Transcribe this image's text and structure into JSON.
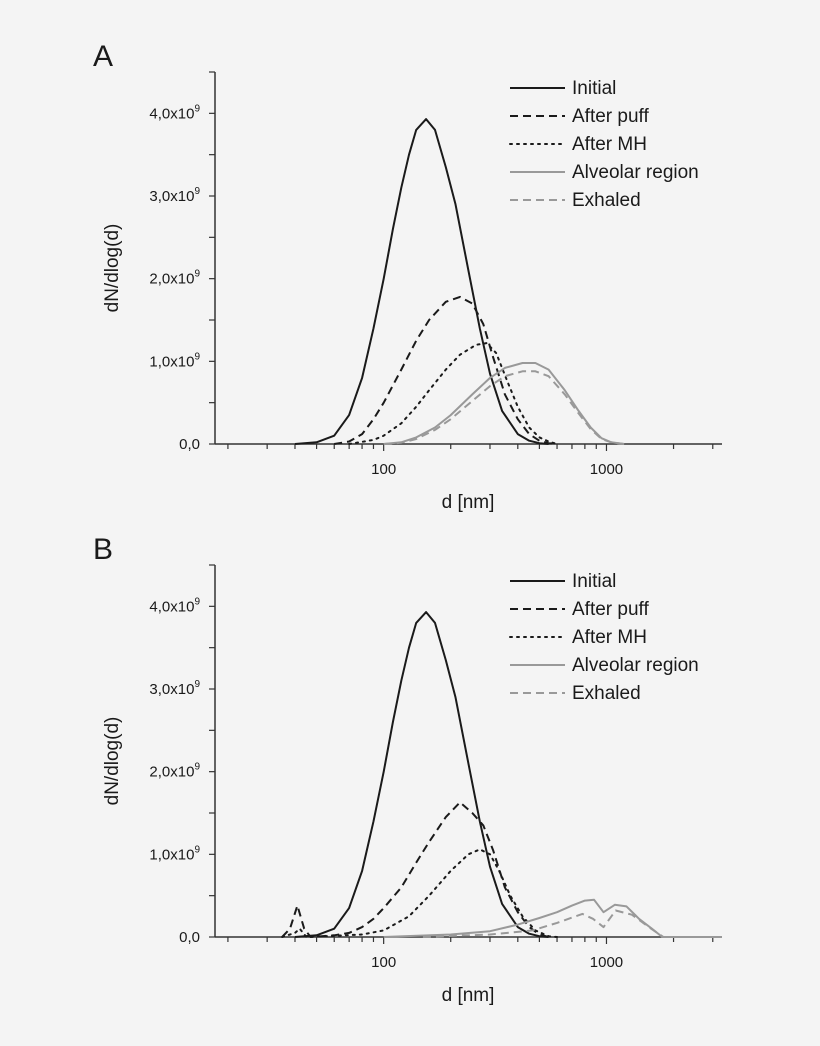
{
  "chart_data": [
    {
      "type": "line",
      "panel_label": "A",
      "xlabel": "d [nm]",
      "ylabel": "dN/dlog(d)",
      "x_scale": "log",
      "xlim": [
        17.5,
        3300
      ],
      "ylim": [
        0,
        4500000000.0
      ],
      "x_ticks": [
        {
          "value": 100,
          "label": "100"
        },
        {
          "value": 1000,
          "label": "1000"
        }
      ],
      "y_ticks": [
        {
          "value": 0,
          "text": "0,0",
          "exp": ""
        },
        {
          "value": 1000000000.0,
          "text": "1,0x10",
          "exp": "9"
        },
        {
          "value": 2000000000.0,
          "text": "2,0x10",
          "exp": "9"
        },
        {
          "value": 3000000000.0,
          "text": "3,0x10",
          "exp": "9"
        },
        {
          "value": 4000000000.0,
          "text": "4,0x10",
          "exp": "9"
        }
      ],
      "grid": false,
      "legend_position": "top-right",
      "y_unit_multiplier": 1000000000.0,
      "series": [
        {
          "name": "Initial",
          "color": "#1a1a1a",
          "style": "solid",
          "x": [
            40,
            50,
            60,
            70,
            80,
            90,
            100,
            110,
            120,
            130,
            140,
            155,
            170,
            190,
            210,
            240,
            270,
            300,
            340,
            400,
            450,
            500,
            550
          ],
          "y": [
            0,
            0.02,
            0.1,
            0.35,
            0.8,
            1.4,
            2.0,
            2.6,
            3.1,
            3.5,
            3.8,
            3.93,
            3.8,
            3.35,
            2.9,
            2.1,
            1.4,
            0.85,
            0.4,
            0.12,
            0.04,
            0.01,
            0
          ]
        },
        {
          "name": "After puff",
          "color": "#1a1a1a",
          "style": "dashed",
          "x": [
            60,
            70,
            80,
            90,
            100,
            120,
            140,
            160,
            190,
            220,
            250,
            280,
            310,
            350,
            400,
            450,
            500,
            550,
            600
          ],
          "y": [
            0,
            0.03,
            0.12,
            0.3,
            0.5,
            0.9,
            1.25,
            1.5,
            1.72,
            1.78,
            1.7,
            1.45,
            1.05,
            0.6,
            0.3,
            0.12,
            0.04,
            0.01,
            0
          ]
        },
        {
          "name": "After MH",
          "color": "#1a1a1a",
          "style": "dotted",
          "x": [
            70,
            90,
            100,
            120,
            140,
            160,
            190,
            220,
            260,
            290,
            320,
            360,
            400,
            450,
            500,
            550,
            600
          ],
          "y": [
            0,
            0.05,
            0.1,
            0.25,
            0.45,
            0.65,
            0.9,
            1.08,
            1.2,
            1.22,
            1.1,
            0.75,
            0.45,
            0.2,
            0.08,
            0.03,
            0
          ]
        },
        {
          "name": "Alveolar region",
          "color": "#999999",
          "style": "solid",
          "x": [
            100,
            120,
            140,
            170,
            200,
            250,
            300,
            350,
            420,
            480,
            550,
            650,
            750,
            850,
            950,
            1050,
            1200
          ],
          "y": [
            0,
            0.02,
            0.08,
            0.2,
            0.35,
            0.6,
            0.8,
            0.92,
            0.98,
            0.98,
            0.9,
            0.65,
            0.4,
            0.2,
            0.07,
            0.02,
            0
          ]
        },
        {
          "name": "Exhaled",
          "color": "#999999",
          "style": "dashed",
          "x": [
            100,
            120,
            140,
            170,
            200,
            250,
            300,
            350,
            420,
            480,
            550,
            650,
            750,
            850,
            950,
            1050,
            1200
          ],
          "y": [
            0,
            0.015,
            0.06,
            0.17,
            0.3,
            0.52,
            0.7,
            0.82,
            0.88,
            0.88,
            0.82,
            0.6,
            0.37,
            0.18,
            0.06,
            0.02,
            0
          ]
        }
      ]
    },
    {
      "type": "line",
      "panel_label": "B",
      "xlabel": "d [nm]",
      "ylabel": "dN/dlog(d)",
      "x_scale": "log",
      "xlim": [
        17.5,
        3300
      ],
      "ylim": [
        0,
        4500000000.0
      ],
      "x_ticks": [
        {
          "value": 100,
          "label": "100"
        },
        {
          "value": 1000,
          "label": "1000"
        }
      ],
      "y_ticks": [
        {
          "value": 0,
          "text": "0,0",
          "exp": ""
        },
        {
          "value": 1000000000.0,
          "text": "1,0x10",
          "exp": "9"
        },
        {
          "value": 2000000000.0,
          "text": "2,0x10",
          "exp": "9"
        },
        {
          "value": 3000000000.0,
          "text": "3,0x10",
          "exp": "9"
        },
        {
          "value": 4000000000.0,
          "text": "4,0x10",
          "exp": "9"
        }
      ],
      "grid": false,
      "legend_position": "top-right",
      "y_unit_multiplier": 1000000000.0,
      "series": [
        {
          "name": "Initial",
          "color": "#1a1a1a",
          "style": "solid",
          "x": [
            40,
            50,
            60,
            70,
            80,
            90,
            100,
            110,
            120,
            130,
            140,
            155,
            170,
            190,
            210,
            240,
            270,
            300,
            340,
            400,
            450,
            500,
            550
          ],
          "y": [
            0,
            0.02,
            0.1,
            0.35,
            0.8,
            1.4,
            2.0,
            2.6,
            3.1,
            3.5,
            3.8,
            3.93,
            3.8,
            3.35,
            2.9,
            2.1,
            1.4,
            0.85,
            0.4,
            0.12,
            0.04,
            0.01,
            0
          ]
        },
        {
          "name": "After puff",
          "color": "#1a1a1a",
          "style": "dashed",
          "x": [
            35,
            38,
            41,
            44,
            47,
            60,
            70,
            80,
            90,
            100,
            120,
            140,
            160,
            190,
            220,
            250,
            280,
            310,
            350,
            400,
            450,
            500,
            550
          ],
          "y": [
            0,
            0.1,
            0.38,
            0.1,
            0,
            0.02,
            0.05,
            0.12,
            0.22,
            0.35,
            0.6,
            0.9,
            1.15,
            1.45,
            1.63,
            1.5,
            1.35,
            1.05,
            0.6,
            0.3,
            0.12,
            0.03,
            0
          ]
        },
        {
          "name": "After MH",
          "color": "#1a1a1a",
          "style": "dotted",
          "x": [
            35,
            40,
            42,
            45,
            80,
            100,
            130,
            160,
            200,
            240,
            270,
            300,
            330,
            370,
            420,
            480,
            550,
            600
          ],
          "y": [
            0,
            0.05,
            0.1,
            0,
            0.03,
            0.08,
            0.25,
            0.5,
            0.8,
            1.0,
            1.06,
            1.0,
            0.8,
            0.5,
            0.25,
            0.08,
            0.01,
            0
          ]
        },
        {
          "name": "Alveolar region",
          "color": "#999999",
          "style": "solid",
          "x": [
            100,
            200,
            300,
            400,
            500,
            600,
            700,
            800,
            880,
            970,
            1090,
            1230,
            1400,
            1600,
            1780,
            3300
          ],
          "y": [
            0,
            0.03,
            0.07,
            0.15,
            0.23,
            0.3,
            0.38,
            0.44,
            0.45,
            0.3,
            0.39,
            0.37,
            0.22,
            0.1,
            0,
            0
          ]
        },
        {
          "name": "Exhaled",
          "color": "#999999",
          "style": "dashed",
          "x": [
            150,
            300,
            466,
            600,
            780,
            870,
            970,
            1100,
            1300,
            1550,
            1800
          ],
          "y": [
            0,
            0.03,
            0.08,
            0.17,
            0.28,
            0.22,
            0.12,
            0.32,
            0.27,
            0.12,
            0
          ]
        }
      ]
    }
  ]
}
